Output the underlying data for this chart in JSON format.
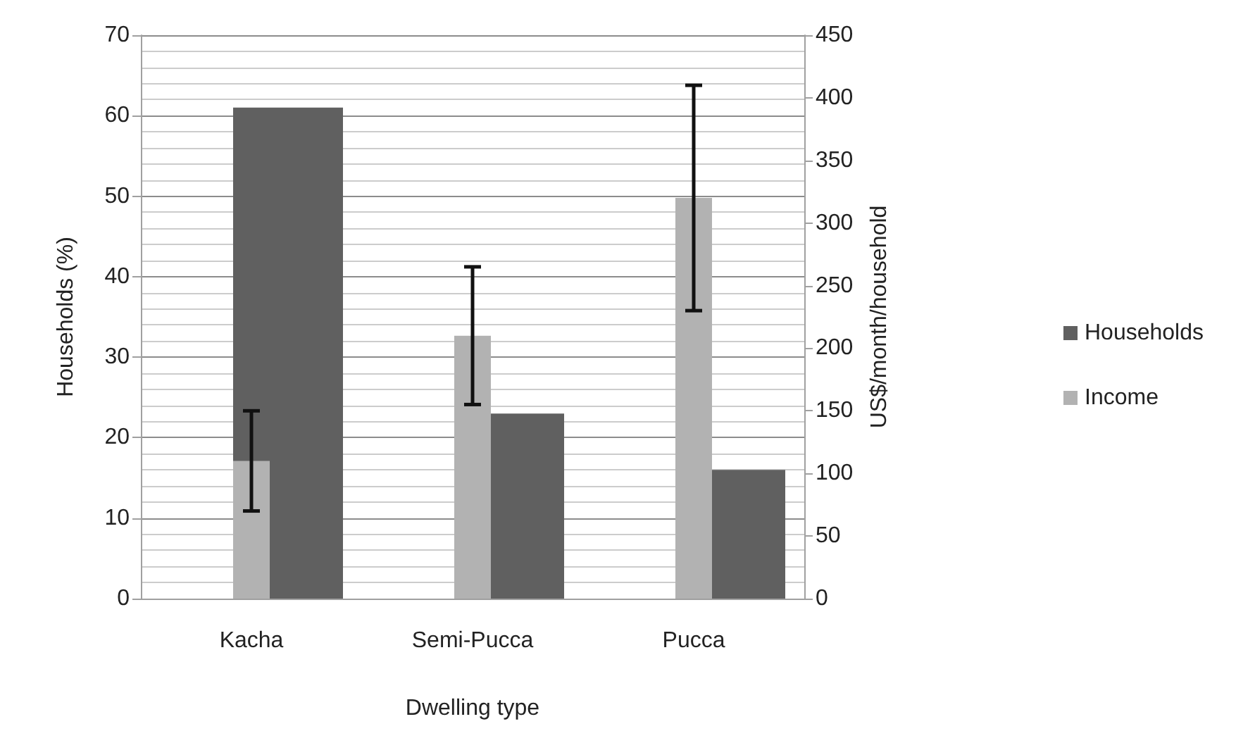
{
  "chart_data": {
    "type": "bar",
    "xlabel": "Dwelling type",
    "ylabel": "Households (%)",
    "y2label": "US$/month/household",
    "categories": [
      "Kacha",
      "Semi-Pucca",
      "Pucca"
    ],
    "series": [
      {
        "name": "Households",
        "color": "#606060",
        "values": [
          61,
          23,
          16
        ]
      },
      {
        "name": "Income",
        "color": "#b2b2b2",
        "values": [
          110,
          210,
          320
        ],
        "axis": "y2",
        "errors": [
          [
            70,
            150
          ],
          [
            155,
            265
          ],
          [
            230,
            410
          ]
        ]
      }
    ],
    "ylim": [
      0,
      70
    ],
    "yticks": [
      0,
      10,
      20,
      30,
      40,
      50,
      60,
      70
    ],
    "y2lim": [
      0,
      450
    ],
    "y2ticks": [
      0,
      50,
      100,
      150,
      200,
      250,
      300,
      350,
      400,
      450
    ],
    "grid": "y",
    "legend": "right"
  }
}
